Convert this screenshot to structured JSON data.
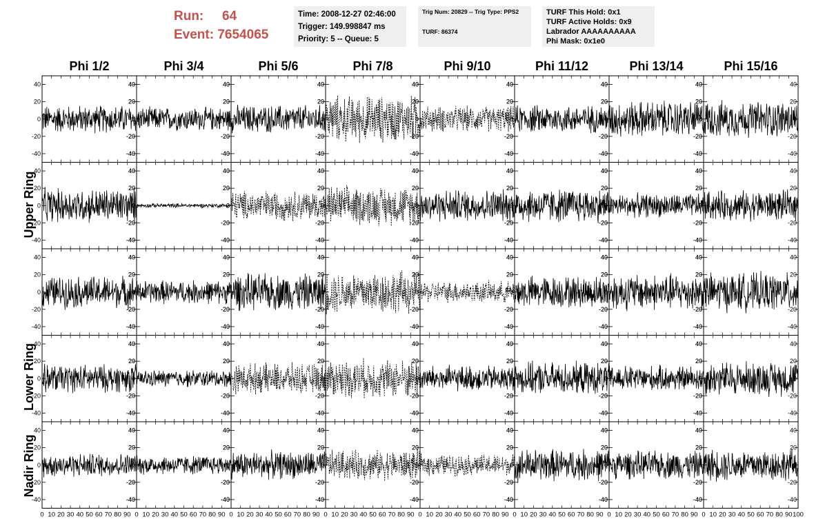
{
  "header": {
    "run_label": "Run:",
    "run_value": "64",
    "event_label": "Event:",
    "event_value": "7654065",
    "time": "Time: 2008-12-27 02:46:00",
    "trigger": "Trigger: 149.998847 ms",
    "priority": "Priority: 5 -- Queue: 5",
    "trig_num": "Trig Num: 20829 -- Trig Type: PPS2",
    "turf": "TURF: 86374",
    "turf_this_hold": "TURF This Hold: 0x1",
    "turf_active_holds": "TURF Active Holds: 0x9",
    "labrador": "Labrador AAAAAAAAAA",
    "phi_mask": "Phi Mask: 0x1e0"
  },
  "colors": {
    "title": "#c8504b",
    "info_bg": "#efefef",
    "trace": "#000000"
  },
  "chart_data": {
    "type": "line",
    "columns": [
      "Phi 1/2",
      "Phi 3/4",
      "Phi 5/6",
      "Phi 7/8",
      "Phi 9/10",
      "Phi 11/12",
      "Phi 13/14",
      "Phi 15/16"
    ],
    "rows": [
      "Upper Ring",
      "Upper Ring",
      "Lower Ring",
      "Lower Ring",
      "Nadir Ring"
    ],
    "row_labels": [
      {
        "text": "Upper Ring",
        "span": [
          0,
          1
        ]
      },
      {
        "text": "Lower Ring",
        "span": [
          2,
          3
        ]
      },
      {
        "text": "Nadir Ring",
        "span": [
          4,
          4
        ]
      }
    ],
    "xlim": [
      0,
      100
    ],
    "ylim": [
      -50,
      50
    ],
    "y_ticks": [
      -40,
      -20,
      0,
      20,
      40
    ],
    "x_ticks": [
      0,
      10,
      20,
      30,
      40,
      50,
      60,
      70,
      80,
      90,
      100
    ],
    "x_tick_labels": [
      "0",
      "10",
      "20",
      "30",
      "40",
      "50",
      "60",
      "70",
      "80",
      "90",
      "100"
    ],
    "y_tick_labels": [
      "-40",
      "-20",
      "0",
      "20",
      "40"
    ],
    "samples_per_trace": 260,
    "traces": [
      [
        {
          "amp": 13,
          "style": "solid"
        },
        {
          "amp": 11,
          "style": "solid"
        },
        {
          "amp": 13,
          "style": "solid"
        },
        {
          "amp": 22,
          "style": "dashed"
        },
        {
          "amp": 12,
          "style": "dashed"
        },
        {
          "amp": 13,
          "style": "solid"
        },
        {
          "amp": 17,
          "style": "solid"
        },
        {
          "amp": 17,
          "style": "solid"
        }
      ],
      [
        {
          "amp": 16,
          "style": "solid"
        },
        {
          "amp": 2,
          "style": "solid"
        },
        {
          "amp": 14,
          "style": "dashed"
        },
        {
          "amp": 18,
          "style": "dashed"
        },
        {
          "amp": 15,
          "style": "solid"
        },
        {
          "amp": 16,
          "style": "solid"
        },
        {
          "amp": 11,
          "style": "solid"
        },
        {
          "amp": 14,
          "style": "solid"
        }
      ],
      [
        {
          "amp": 15,
          "style": "solid"
        },
        {
          "amp": 11,
          "style": "solid"
        },
        {
          "amp": 17,
          "style": "solid"
        },
        {
          "amp": 20,
          "style": "dashed"
        },
        {
          "amp": 10,
          "style": "dashed"
        },
        {
          "amp": 15,
          "style": "solid"
        },
        {
          "amp": 17,
          "style": "solid"
        },
        {
          "amp": 18,
          "style": "solid"
        }
      ],
      [
        {
          "amp": 13,
          "style": "solid"
        },
        {
          "amp": 8,
          "style": "solid"
        },
        {
          "amp": 14,
          "style": "dashed"
        },
        {
          "amp": 18,
          "style": "dashed"
        },
        {
          "amp": 12,
          "style": "solid"
        },
        {
          "amp": 15,
          "style": "solid"
        },
        {
          "amp": 12,
          "style": "solid"
        },
        {
          "amp": 16,
          "style": "solid"
        }
      ],
      [
        {
          "amp": 11,
          "style": "solid"
        },
        {
          "amp": 9,
          "style": "solid"
        },
        {
          "amp": 13,
          "style": "solid"
        },
        {
          "amp": 14,
          "style": "dashed"
        },
        {
          "amp": 10,
          "style": "dashed"
        },
        {
          "amp": 15,
          "style": "solid"
        },
        {
          "amp": 13,
          "style": "solid"
        },
        {
          "amp": 15,
          "style": "solid"
        }
      ]
    ]
  }
}
